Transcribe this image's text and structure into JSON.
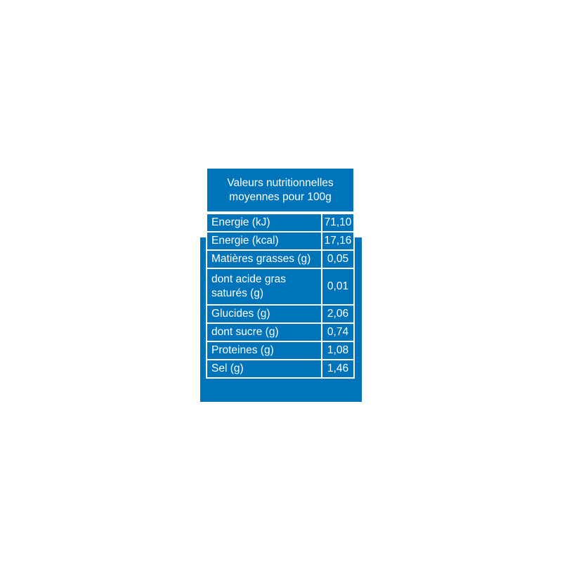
{
  "header": {
    "line1": "Valeurs nutritionnelles",
    "line2": "moyennes pour 100g"
  },
  "rows": [
    {
      "label": "Energie (kJ)",
      "value": "71,10"
    },
    {
      "label": "Energie (kcal)",
      "value": "17,16"
    },
    {
      "label": "Matières grasses (g)",
      "value": "0,05"
    },
    {
      "label": "dont acide gras saturés (g)",
      "label_line1": "dont acide gras",
      "label_line2": "saturés (g)",
      "value": "0,01"
    },
    {
      "label": "Glucides (g)",
      "value": "2,06"
    },
    {
      "label": "dont sucre (g)",
      "value": "0,74"
    },
    {
      "label": "Proteines (g)",
      "value": "1,08"
    },
    {
      "label": "Sel (g)",
      "value": "1,46"
    }
  ],
  "colors": {
    "brand_blue": "#0074bb"
  }
}
